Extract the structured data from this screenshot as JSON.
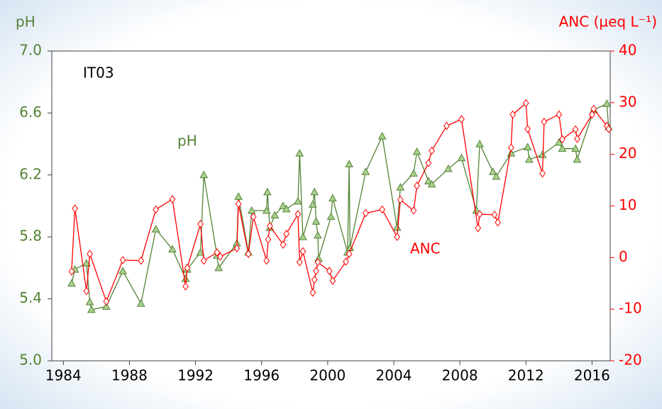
{
  "chart_data": {
    "type": "line",
    "annotation": "IT03",
    "ylabel": "pH",
    "y2label": "ANC (µeq L⁻¹)",
    "xlim": [
      1983.3,
      2017.1
    ],
    "xticks": [
      1984,
      1988,
      1992,
      1996,
      2000,
      2004,
      2008,
      2012,
      2016
    ],
    "ylim": [
      5.0,
      7.0
    ],
    "yticks": [
      {
        "value": 5.0,
        "label": "5.0"
      },
      5.4,
      5.8,
      6.2,
      6.6,
      {
        "value": 7.0,
        "label": "7.0"
      }
    ],
    "y2lim": [
      -20,
      40
    ],
    "y2ticks": [
      -20,
      -10,
      0,
      10,
      20,
      30,
      40
    ],
    "series": [
      {
        "name": "pH",
        "color": "#548235",
        "marker": "triangle",
        "marker_fill": "#a9d18e",
        "x": [
          1984.5,
          1984.7,
          1985.4,
          1985.6,
          1985.7,
          1986.6,
          1987.6,
          1988.7,
          1989.6,
          1990.6,
          1991.4,
          1991.5,
          1992.3,
          1992.5,
          1993.3,
          1993.4,
          1994.5,
          1994.6,
          1995.2,
          1995.4,
          1996.3,
          1996.35,
          1996.5,
          1996.8,
          1997.3,
          1997.5,
          1998.2,
          1998.3,
          1998.5,
          1999.1,
          1999.2,
          1999.3,
          1999.4,
          1999.45,
          2000.2,
          2000.3,
          2001.2,
          2001.3,
          2001.35,
          2002.3,
          2003.3,
          2004.2,
          2004.4,
          2005.2,
          2005.4,
          2006.1,
          2006.3,
          2007.3,
          2008.1,
          2009.0,
          2009.2,
          2010.0,
          2010.2,
          2011.1,
          2012.1,
          2012.2,
          2013.0,
          2014.0,
          2014.2,
          2015.0,
          2015.1,
          2016.1,
          2016.9,
          2017.0
        ],
        "values": [
          5.5,
          5.59,
          5.63,
          5.38,
          5.33,
          5.35,
          5.58,
          5.37,
          5.85,
          5.72,
          5.53,
          5.59,
          5.7,
          6.2,
          5.68,
          5.6,
          5.76,
          6.06,
          5.7,
          5.97,
          5.97,
          6.09,
          5.86,
          5.94,
          6.0,
          5.98,
          6.03,
          6.34,
          5.8,
          6.01,
          6.09,
          5.9,
          5.81,
          5.66,
          5.93,
          6.05,
          5.7,
          6.27,
          5.73,
          6.22,
          6.45,
          5.86,
          6.12,
          6.21,
          6.35,
          6.16,
          6.14,
          6.24,
          6.31,
          5.97,
          6.4,
          6.22,
          6.19,
          6.34,
          6.38,
          6.3,
          6.33,
          6.41,
          6.37,
          6.37,
          6.3,
          6.62,
          6.66,
          6.51
        ]
      },
      {
        "name": "ANC",
        "color": "#ff0000",
        "marker": "diamond",
        "marker_fill": "#ffffff",
        "axis": "y2",
        "x": [
          1984.5,
          1984.7,
          1985.4,
          1985.6,
          1986.6,
          1987.6,
          1988.7,
          1989.6,
          1990.6,
          1991.4,
          1991.5,
          1992.3,
          1992.5,
          1993.3,
          1993.5,
          1994.5,
          1994.6,
          1995.2,
          1995.5,
          1996.3,
          1996.4,
          1996.5,
          1997.3,
          1997.5,
          1998.2,
          1998.3,
          1998.5,
          1999.1,
          1999.2,
          1999.3,
          1999.4,
          2000.1,
          2000.3,
          2001.1,
          2001.3,
          2002.3,
          2003.3,
          2004.2,
          2004.4,
          2005.2,
          2005.4,
          2006.1,
          2006.3,
          2007.2,
          2008.1,
          2009.1,
          2009.2,
          2010.1,
          2010.3,
          2011.1,
          2011.2,
          2012.0,
          2012.1,
          2013.0,
          2013.1,
          2014.0,
          2014.2,
          2015.0,
          2015.1,
          2016.0,
          2016.1,
          2016.9,
          2017.0
        ],
        "values": [
          -2.7,
          9.5,
          -6.5,
          0.7,
          -8.5,
          -0.5,
          -0.6,
          9.3,
          11.3,
          -5.6,
          -2.0,
          6.5,
          -0.6,
          1.0,
          0.2,
          1.8,
          10.4,
          0.7,
          7.9,
          -0.6,
          3.5,
          6.1,
          2.5,
          4.6,
          8.4,
          -0.9,
          1.2,
          -6.8,
          -4.3,
          -2.6,
          -0.9,
          -2.6,
          -4.5,
          -0.8,
          0.7,
          8.6,
          9.3,
          4.0,
          11.2,
          9.1,
          13.9,
          18.3,
          20.7,
          25.5,
          26.8,
          5.7,
          8.4,
          8.3,
          6.8,
          21.3,
          27.7,
          29.9,
          24.9,
          16.3,
          26.3,
          27.7,
          22.9,
          24.8,
          23.0,
          27.7,
          28.8,
          25.5,
          24.9
        ]
      }
    ]
  }
}
